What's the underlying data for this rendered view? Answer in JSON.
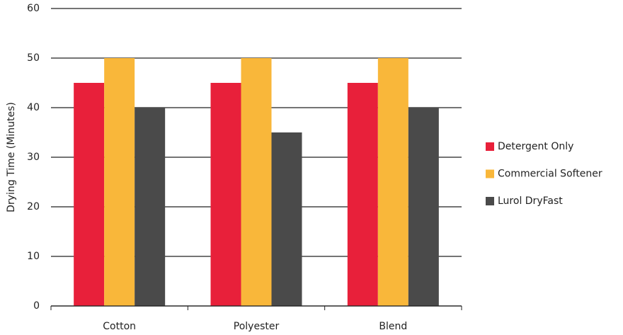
{
  "chart_data": {
    "type": "bar",
    "y_label": "Drying Time (Minutes)",
    "categories": [
      "Cotton",
      "Polyester",
      "Blend"
    ],
    "series": [
      {
        "name": "Detergent Only",
        "color": "#e8203a",
        "values": [
          45,
          45,
          45
        ]
      },
      {
        "name": "Commercial Softener",
        "color": "#f9b73a",
        "values": [
          50,
          50,
          50
        ]
      },
      {
        "name": "Lurol DryFast",
        "color": "#4a4a4a",
        "values": [
          40,
          35,
          40
        ]
      }
    ],
    "ylim": [
      0,
      60
    ],
    "yticks": [
      0,
      10,
      20,
      30,
      40,
      50,
      60
    ],
    "grid": true,
    "legend": "right"
  }
}
